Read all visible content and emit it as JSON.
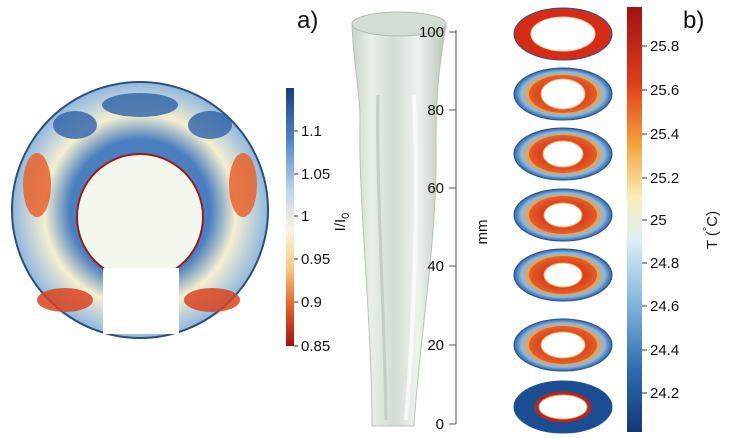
{
  "panels": {
    "a": {
      "letter": "a)"
    },
    "b": {
      "letter": "b)"
    }
  },
  "colorbar_intensity": {
    "label_main": "I/I",
    "label_sub": "0",
    "ticks": [
      "1.1",
      "1.05",
      "1",
      "0.95",
      "0.9",
      "0.85"
    ]
  },
  "height_axis": {
    "label": "mm",
    "ticks": [
      "100",
      "80",
      "60",
      "40",
      "20",
      "0"
    ]
  },
  "colorbar_temperature": {
    "label_prefix": "T (",
    "label_degree": "°",
    "label_unit": "C)",
    "ticks": [
      "25.8",
      "25.6",
      "25.4",
      "25.2",
      "25",
      "24.8",
      "24.6",
      "24.4",
      "24.2"
    ]
  },
  "colors": {
    "cold": "#1a4a8e",
    "mid": "#f6f4dc",
    "hot": "#b11514",
    "tube": "#d9e3d9",
    "inner_fill": "#f2f8ee"
  }
}
